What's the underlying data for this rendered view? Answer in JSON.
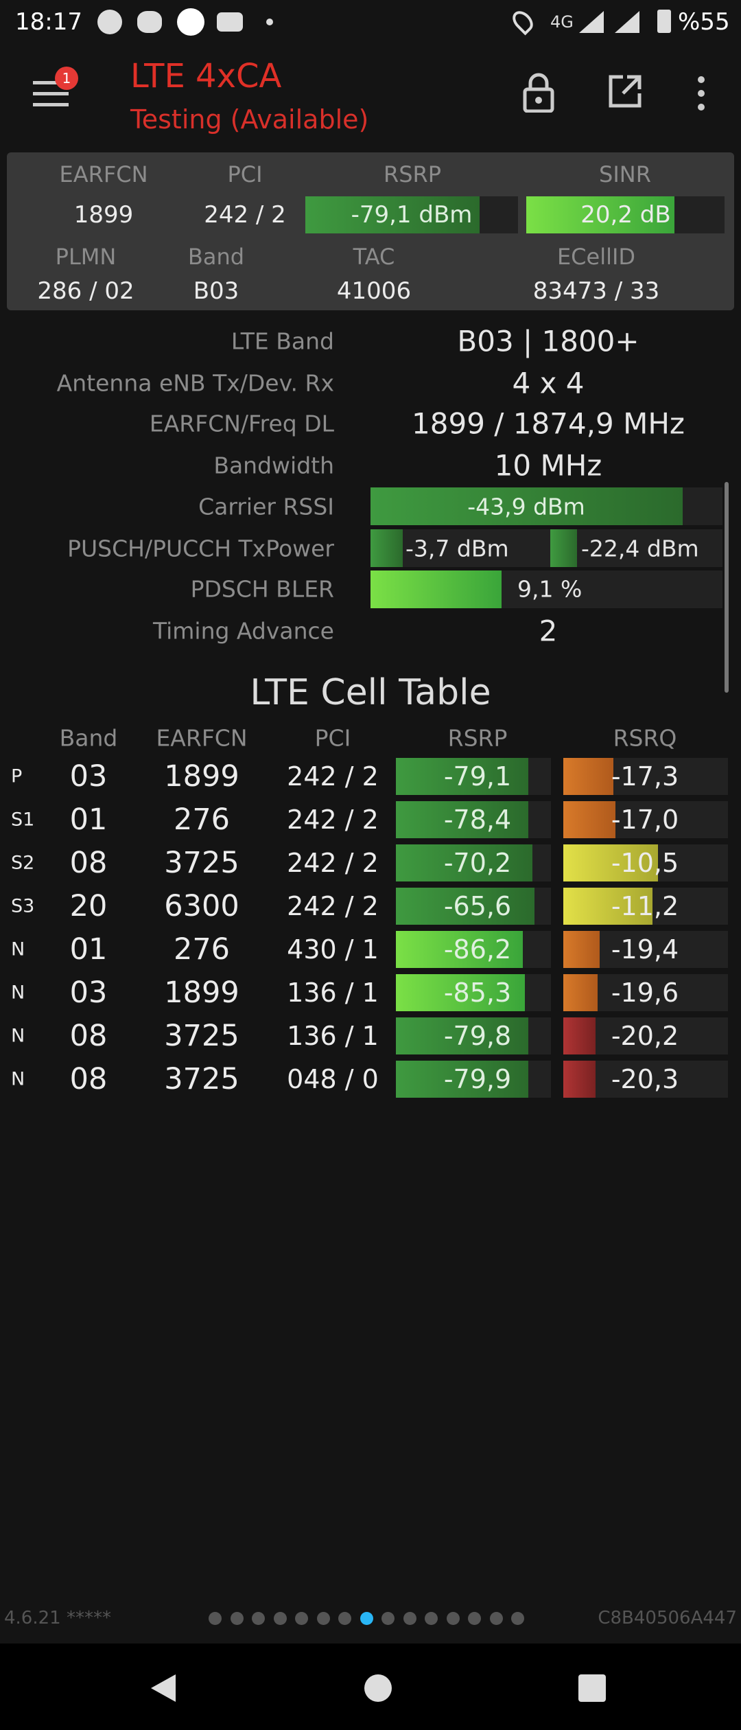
{
  "status_bar": {
    "time": "18:17",
    "network": "4G",
    "battery": "%55"
  },
  "header": {
    "badge": "1",
    "title": "LTE 4xCA",
    "subtitle": "Testing (Available)"
  },
  "serving": {
    "labels": [
      "EARFCN",
      "PCI",
      "RSRP",
      "SINR"
    ],
    "values": [
      "1899",
      "242 / 2",
      "-79,1 dBm",
      "20,2 dB"
    ],
    "labels2": [
      "PLMN",
      "Band",
      "TAC",
      "ECellID"
    ],
    "values2": [
      "286 / 02",
      "B03",
      "41006",
      "83473 / 33"
    ]
  },
  "details": [
    {
      "label": "LTE Band",
      "value": "B03 | 1800+"
    },
    {
      "label": "Antenna eNB Tx/Dev. Rx",
      "value": "4 x 4"
    },
    {
      "label": "EARFCN/Freq DL",
      "value": "1899 / 1874,9 MHz"
    },
    {
      "label": "Bandwidth",
      "value": "10 MHz"
    },
    {
      "label": "Carrier RSSI",
      "value": "-43,9 dBm"
    },
    {
      "label": "PUSCH/PUCCH TxPower",
      "value": "-3,7 dBm",
      "value2": "-22,4 dBm"
    },
    {
      "label": "PDSCH BLER",
      "value": "9,1 %"
    },
    {
      "label": "Timing Advance",
      "value": "2"
    }
  ],
  "cell_table": {
    "title": "LTE Cell Table",
    "columns": [
      "Band",
      "EARFCN",
      "PCI",
      "RSRP",
      "RSRQ"
    ],
    "rows": [
      [
        "P",
        "03",
        "1899",
        "242 / 2",
        "-79,1",
        "-17,3"
      ],
      [
        "S1",
        "01",
        "276",
        "242 / 2",
        "-78,4",
        "-17,0"
      ],
      [
        "S2",
        "08",
        "3725",
        "242 / 2",
        "-70,2",
        "-10,5"
      ],
      [
        "S3",
        "20",
        "6300",
        "242 / 2",
        "-65,6",
        "-11,2"
      ],
      [
        "N",
        "01",
        "276",
        "430 / 1",
        "-86,2",
        "-19,4"
      ],
      [
        "N",
        "03",
        "1899",
        "136 / 1",
        "-85,3",
        "-19,6"
      ],
      [
        "N",
        "08",
        "3725",
        "136 / 1",
        "-79,8",
        "-20,2"
      ],
      [
        "N",
        "08",
        "3725",
        "048 / 0",
        "-79,9",
        "-20,3"
      ]
    ]
  },
  "footer": {
    "version": "4.6.21 *****",
    "device_id": "C8B40506A447"
  }
}
